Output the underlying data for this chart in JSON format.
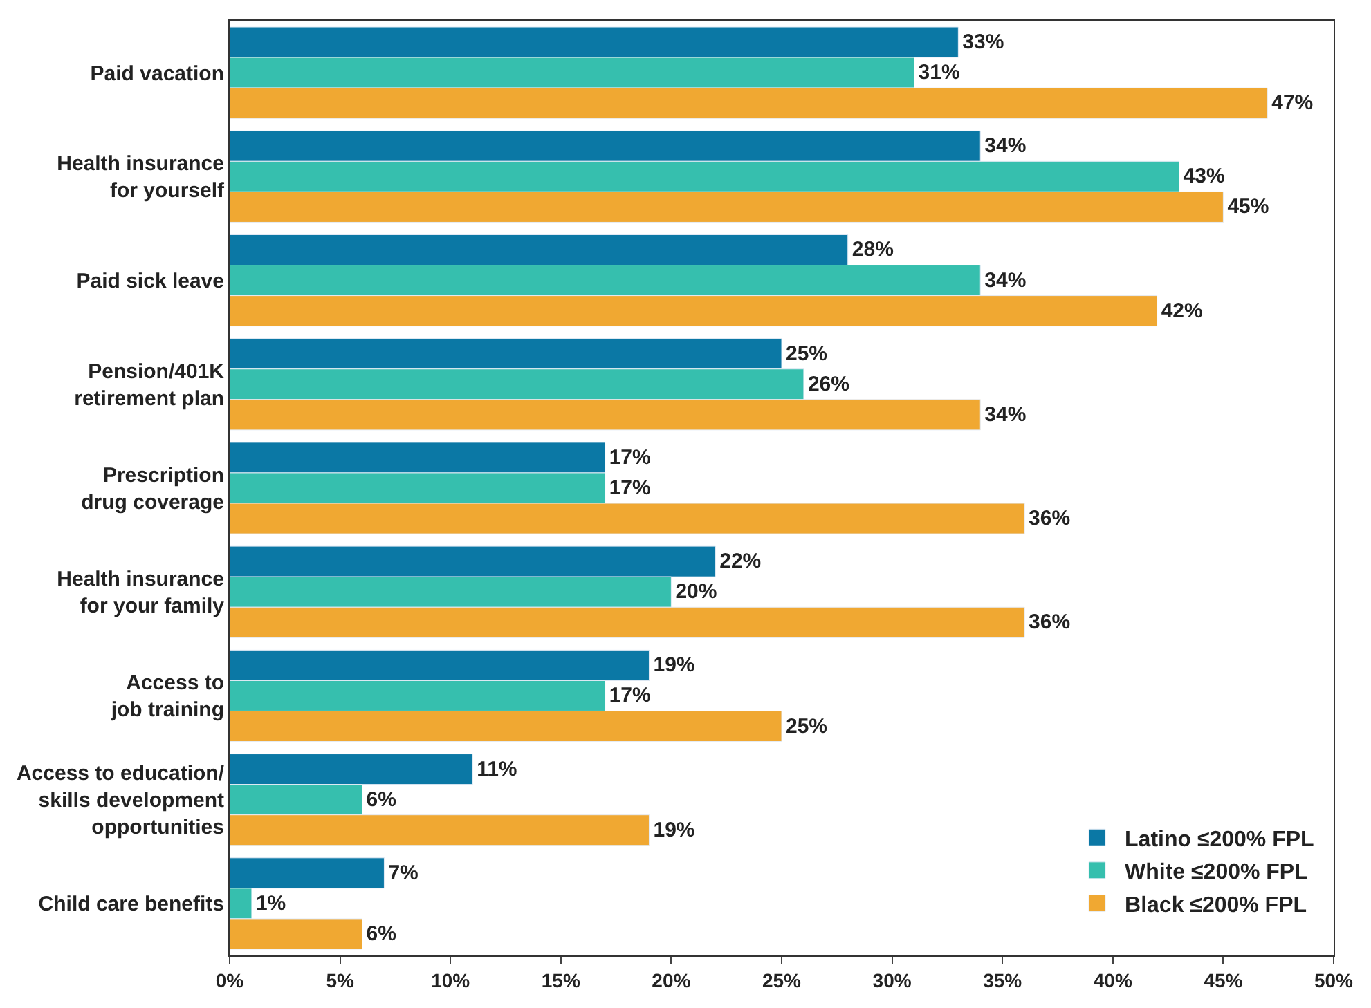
{
  "chart_data": {
    "type": "bar",
    "orientation": "horizontal",
    "categories": [
      "Paid vacation",
      "Health insurance\nfor yourself",
      "Paid sick leave",
      "Pension/401K\nretirement plan",
      "Prescription\ndrug coverage",
      "Health insurance\nfor your family",
      "Access to\njob training",
      "Access to education/\nskills development\nopportunities",
      "Child care benefits"
    ],
    "series": [
      {
        "name": "Latino ≤200% FPL",
        "color": "#0b78a5",
        "values": [
          33,
          34,
          28,
          25,
          17,
          22,
          19,
          11,
          7
        ],
        "value_labels": [
          "33%",
          "34%",
          "28%",
          "25%",
          "17%",
          "22%",
          "19%",
          "11%",
          "7%"
        ]
      },
      {
        "name": "White ≤200% FPL",
        "color": "#36bfae",
        "values": [
          31,
          43,
          34,
          26,
          17,
          20,
          17,
          6,
          1
        ],
        "value_labels": [
          "31%",
          "43%",
          "34%",
          "26%",
          "17%",
          "20%",
          "17%",
          "6%",
          "1%"
        ]
      },
      {
        "name": "Black ≤200% FPL",
        "color": "#f0a832",
        "values": [
          47,
          45,
          42,
          34,
          36,
          36,
          25,
          19,
          6
        ],
        "value_labels": [
          "47%",
          "45%",
          "42%",
          "34%",
          "36%",
          "36%",
          "25%",
          "19%",
          "6%"
        ]
      }
    ],
    "xlim": [
      0,
      50
    ],
    "xticks": [
      {
        "value": 0,
        "label": "0%"
      },
      {
        "value": 5,
        "label": "5%"
      },
      {
        "value": 10,
        "label": "10%"
      },
      {
        "value": 15,
        "label": "15%"
      },
      {
        "value": 20,
        "label": "20%"
      },
      {
        "value": 25,
        "label": "25%"
      },
      {
        "value": 30,
        "label": "30%"
      },
      {
        "value": 35,
        "label": "35%"
      },
      {
        "value": 40,
        "label": "40%"
      },
      {
        "value": 45,
        "label": "45%"
      },
      {
        "value": 50,
        "label": "50%"
      }
    ],
    "legend": "bottom right"
  }
}
